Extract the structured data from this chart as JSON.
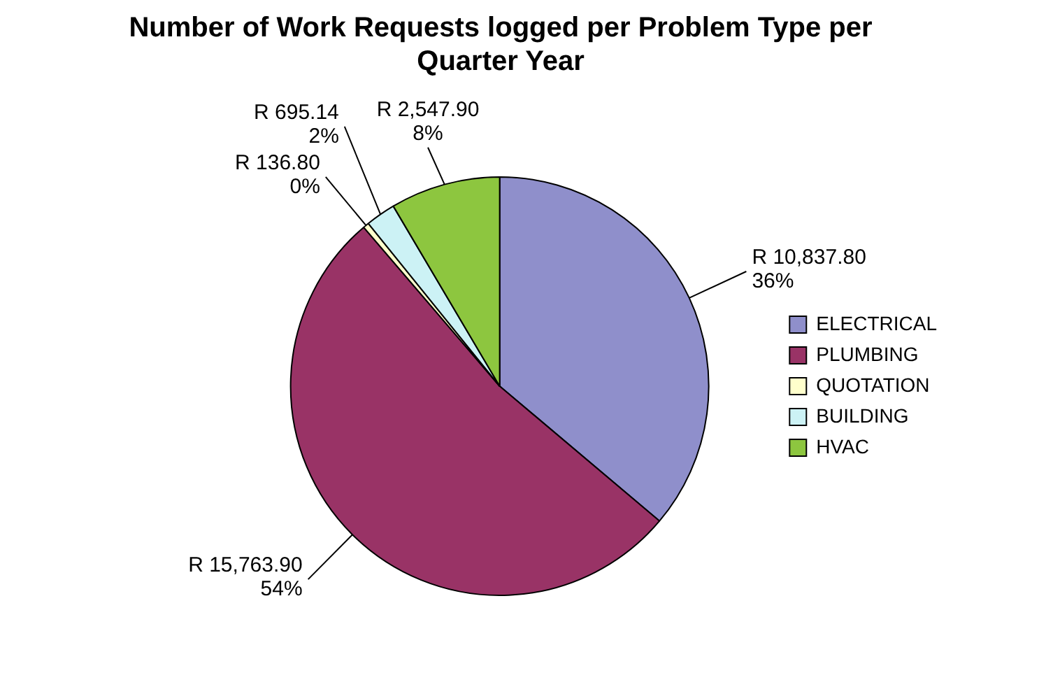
{
  "chart_data": {
    "type": "pie",
    "title": "Number of Work Requests logged per Problem Type per Quarter Year",
    "categories": [
      "ELECTRICAL",
      "PLUMBING",
      "QUOTATION",
      "BUILDING",
      "HVAC"
    ],
    "values": [
      10837.8,
      15763.9,
      136.8,
      695.14,
      2547.9
    ],
    "colors": [
      "#8f8fcb",
      "#993366",
      "#ffffcc",
      "#ccf2f5",
      "#8dc63f"
    ],
    "value_labels": [
      "R 10,837.80\n36%",
      "R 15,763.90\n54%",
      "R 136.80\n0%",
      "R 695.14\n2%",
      "R 2,547.90\n8%"
    ],
    "legend": "right"
  }
}
